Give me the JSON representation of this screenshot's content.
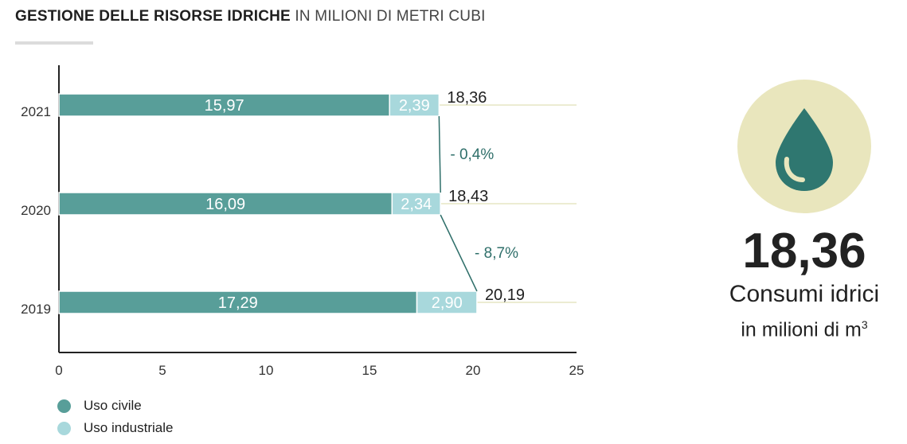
{
  "header": {
    "title_bold": "GESTIONE DELLE RISORSE IDRICHE",
    "title_light": "IN MILIONI DI METRI CUBI"
  },
  "colors": {
    "civile": "#589e99",
    "industriale": "#a8d8dc",
    "guide": "#e6e6c4",
    "delta": "#2f6f6a",
    "drop": "#2f7770",
    "circle": "#e9e6bd"
  },
  "chart_data": {
    "type": "bar",
    "orientation": "horizontal",
    "stacked": true,
    "categories": [
      "2021",
      "2020",
      "2019"
    ],
    "series": [
      {
        "name": "Uso civile",
        "values": [
          15.97,
          16.09,
          17.29
        ],
        "labels": [
          "15,97",
          "16,09",
          "17,29"
        ]
      },
      {
        "name": "Uso industriale",
        "values": [
          2.39,
          2.34,
          2.9
        ],
        "labels": [
          "2,39",
          "2,34",
          "2,90"
        ]
      }
    ],
    "totals": [
      18.36,
      18.43,
      20.19
    ],
    "total_labels": [
      "18,36",
      "18,43",
      "20,19"
    ],
    "changes": [
      {
        "from": "2020",
        "to": "2021",
        "label": "- 0,4%"
      },
      {
        "from": "2019",
        "to": "2020",
        "label": "- 8,7%"
      }
    ],
    "xlim": [
      0,
      25
    ],
    "xticks": [
      0,
      5,
      10,
      15,
      20,
      25
    ],
    "xlabel": "",
    "ylabel": "",
    "grid": false,
    "legend_position": "bottom-left"
  },
  "legend": {
    "items": [
      {
        "label": "Uso civile",
        "color": "#589e99"
      },
      {
        "label": "Uso industriale",
        "color": "#a8d8dc"
      }
    ]
  },
  "kpi": {
    "icon": "water-drop-icon",
    "value": "18,36",
    "label": "Consumi idrici",
    "sub": "in milioni di m",
    "sub_sup": "3"
  }
}
